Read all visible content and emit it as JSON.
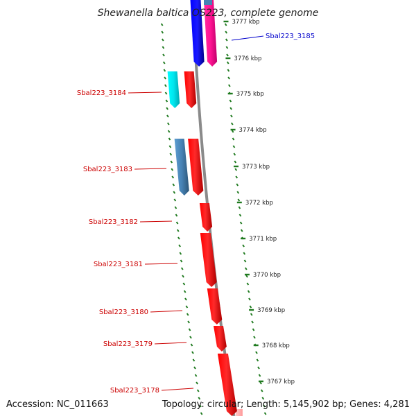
{
  "header": {
    "title": "Shewanella baltica OS223, complete genome"
  },
  "footer": {
    "accession": "Accession: NC_011663",
    "summary": "Topology: circular; Length: 5,145,902 bp; Genes: 4,281"
  },
  "colors": {
    "backbone": "#8a8a8a",
    "tick": "#1f7a1f",
    "label_red": "#cc0000",
    "label_blue": "#0000cc",
    "red": "#ff0000",
    "blue": "#0000ee",
    "pink": "#ff1493",
    "cyan": "#00e5ee",
    "steel": "#4682b4"
  },
  "scale": {
    "unit": "kbp",
    "ticks": [
      {
        "label": "3777 kbp"
      },
      {
        "label": "3776 kbp"
      },
      {
        "label": "3775 kbp"
      },
      {
        "label": "3774 kbp"
      },
      {
        "label": "3773 kbp"
      },
      {
        "label": "3772 kbp"
      },
      {
        "label": "3771 kbp"
      },
      {
        "label": "3770 kbp"
      },
      {
        "label": "3769 kbp"
      },
      {
        "label": "3768 kbp"
      },
      {
        "label": "3767 kbp"
      }
    ]
  },
  "genes": [
    {
      "label": "Sbal223_3185",
      "color": "blue",
      "strand": "reverse"
    },
    {
      "label": "Sbal223_3184",
      "color": "red",
      "strand": "reverse"
    },
    {
      "label": "Sbal223_3183",
      "color": "red",
      "strand": "reverse"
    },
    {
      "label": "Sbal223_3182",
      "color": "red",
      "strand": "reverse"
    },
    {
      "label": "Sbal223_3181",
      "color": "red",
      "strand": "reverse"
    },
    {
      "label": "Sbal223_3180",
      "color": "red",
      "strand": "reverse"
    },
    {
      "label": "Sbal223_3179",
      "color": "red",
      "strand": "reverse"
    },
    {
      "label": "Sbal223_3178",
      "color": "red",
      "strand": "reverse"
    }
  ],
  "feature_colors": [
    "cyan",
    "red",
    "steel",
    "red",
    "blue",
    "pink"
  ]
}
